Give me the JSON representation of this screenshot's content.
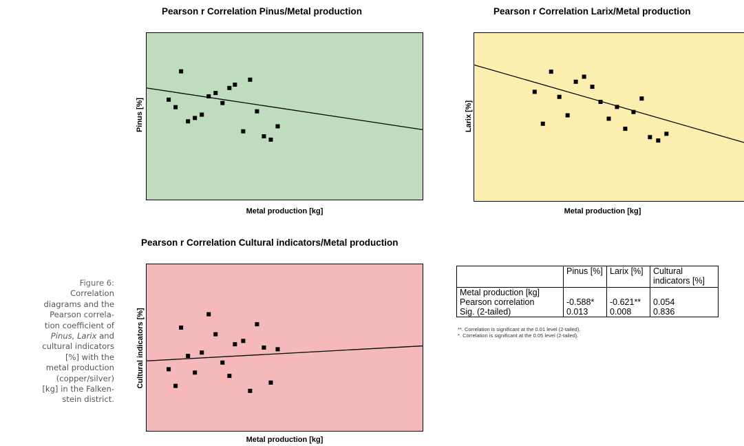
{
  "caption": {
    "heading": "Figure 6:",
    "lines": [
      "Correlation",
      "diagrams and the",
      "Pearson correla-",
      "tion coefficient of"
    ],
    "line_italic": [
      "Pinus, Larix",
      " and"
    ],
    "lines_after": [
      "cultural indicators",
      "[%] with the",
      "metal production",
      "(copper/silver)",
      "[kg] in the Falken-",
      "stein district."
    ]
  },
  "chart_data": [
    {
      "type": "scatter",
      "title": "Pearson r Correlation Pinus/Metal production",
      "xlabel": "Metal production [kg]",
      "ylabel": "Pinus [%]",
      "background": "#bfdcbf",
      "xlim": [
        0,
        100
      ],
      "ylim": [
        0,
        100
      ],
      "points": [
        {
          "x": 8,
          "y": 60
        },
        {
          "x": 10.5,
          "y": 55.5
        },
        {
          "x": 12.5,
          "y": 77
        },
        {
          "x": 15,
          "y": 47
        },
        {
          "x": 17.5,
          "y": 49
        },
        {
          "x": 20,
          "y": 51
        },
        {
          "x": 22.5,
          "y": 62
        },
        {
          "x": 25,
          "y": 64
        },
        {
          "x": 27.5,
          "y": 58
        },
        {
          "x": 30,
          "y": 67
        },
        {
          "x": 32,
          "y": 69
        },
        {
          "x": 35,
          "y": 41
        },
        {
          "x": 37.5,
          "y": 72
        },
        {
          "x": 40,
          "y": 53
        },
        {
          "x": 42.5,
          "y": 38
        },
        {
          "x": 45,
          "y": 36
        },
        {
          "x": 47.5,
          "y": 44
        }
      ],
      "trend_line": [
        {
          "x": 0,
          "y": 67
        },
        {
          "x": 100,
          "y": 42
        }
      ],
      "grid": false
    },
    {
      "type": "scatter",
      "title": "Pearson r Correlation Larix/Metal production",
      "xlabel": "Metal production [kg]",
      "ylabel": "Larix [%]",
      "background": "#fbeeae",
      "xlim": [
        0,
        100
      ],
      "ylim": [
        0,
        100
      ],
      "points": [
        {
          "x": 22,
          "y": 65
        },
        {
          "x": 25,
          "y": 46
        },
        {
          "x": 28,
          "y": 77
        },
        {
          "x": 31,
          "y": 62
        },
        {
          "x": 34,
          "y": 51
        },
        {
          "x": 37,
          "y": 71
        },
        {
          "x": 40,
          "y": 74
        },
        {
          "x": 43,
          "y": 68
        },
        {
          "x": 46,
          "y": 59
        },
        {
          "x": 49,
          "y": 49
        },
        {
          "x": 52,
          "y": 56
        },
        {
          "x": 55,
          "y": 43
        },
        {
          "x": 58,
          "y": 53
        },
        {
          "x": 61,
          "y": 61
        },
        {
          "x": 64,
          "y": 38
        },
        {
          "x": 67,
          "y": 36
        },
        {
          "x": 70,
          "y": 40
        }
      ],
      "trend_line": [
        {
          "x": 0,
          "y": 81
        },
        {
          "x": 100,
          "y": 34
        }
      ],
      "grid": false
    },
    {
      "type": "scatter",
      "title": "Pearson r Correlation Cultural indicators/Metal production",
      "xlabel": "Metal production [kg]",
      "ylabel": "Cultural indicators [%]",
      "background": "#f5b9bb",
      "xlim": [
        0,
        100
      ],
      "ylim": [
        0,
        100
      ],
      "points": [
        {
          "x": 8,
          "y": 37
        },
        {
          "x": 10.5,
          "y": 27
        },
        {
          "x": 12.5,
          "y": 62
        },
        {
          "x": 15,
          "y": 45
        },
        {
          "x": 17.5,
          "y": 35
        },
        {
          "x": 20,
          "y": 47
        },
        {
          "x": 22.5,
          "y": 70
        },
        {
          "x": 25,
          "y": 58
        },
        {
          "x": 27.5,
          "y": 41
        },
        {
          "x": 30,
          "y": 33
        },
        {
          "x": 32,
          "y": 52
        },
        {
          "x": 35,
          "y": 54
        },
        {
          "x": 37.5,
          "y": 24
        },
        {
          "x": 40,
          "y": 64
        },
        {
          "x": 42.5,
          "y": 50
        },
        {
          "x": 45,
          "y": 29
        },
        {
          "x": 47.5,
          "y": 49
        }
      ],
      "trend_line": [
        {
          "x": 0,
          "y": 42
        },
        {
          "x": 100,
          "y": 51
        }
      ],
      "grid": false
    }
  ],
  "stats_table": {
    "headers": [
      "",
      "Pinus [%]",
      "Larix [%]",
      "Cultural indicators [%]"
    ],
    "row_group_label": "Metal production [kg]",
    "rows": [
      {
        "label": "Pearson correlation",
        "pinus": "-0.588*",
        "larix": "-0.621**",
        "cultural": "0.054"
      },
      {
        "label": "Sig. (2-tailed)",
        "pinus": "0.013",
        "larix": "0.008",
        "cultural": "0.836"
      }
    ],
    "notes": [
      "**. Correlation is significant at the 0.01 level (2-tailed).",
      "*. Correlation is significant at the 0.05 level (2-tailed)."
    ]
  }
}
